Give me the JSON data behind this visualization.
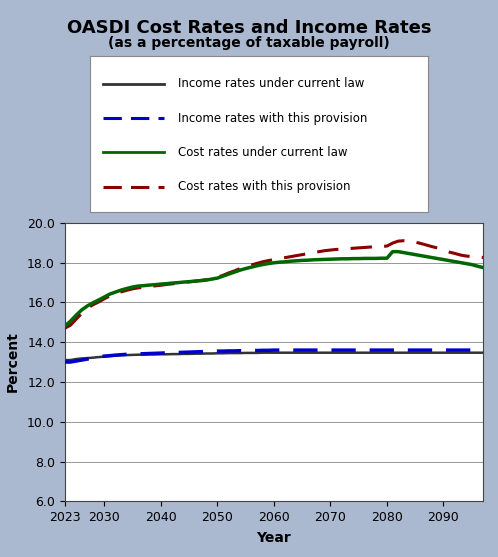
{
  "title": "OASDI Cost Rates and Income Rates",
  "subtitle": "(as a percentage of taxable payroll)",
  "xlabel": "Year",
  "ylabel": "Percent",
  "background_color": "#aab8d0",
  "plot_bg_color": "#ffffff",
  "xlim": [
    2023,
    2097
  ],
  "ylim": [
    6.0,
    20.0
  ],
  "yticks": [
    6.0,
    8.0,
    10.0,
    12.0,
    14.0,
    16.0,
    18.0,
    20.0
  ],
  "xticks": [
    2023,
    2030,
    2040,
    2050,
    2060,
    2070,
    2080,
    2090
  ],
  "years": [
    2023,
    2024,
    2025,
    2026,
    2027,
    2028,
    2029,
    2030,
    2031,
    2032,
    2033,
    2034,
    2035,
    2036,
    2037,
    2038,
    2039,
    2040,
    2041,
    2042,
    2043,
    2044,
    2045,
    2046,
    2047,
    2048,
    2049,
    2050,
    2051,
    2052,
    2053,
    2054,
    2055,
    2056,
    2057,
    2058,
    2059,
    2060,
    2061,
    2062,
    2063,
    2064,
    2065,
    2066,
    2067,
    2068,
    2069,
    2070,
    2071,
    2072,
    2073,
    2074,
    2075,
    2076,
    2077,
    2078,
    2079,
    2080,
    2081,
    2082,
    2083,
    2084,
    2085,
    2086,
    2087,
    2088,
    2089,
    2090,
    2091,
    2092,
    2093,
    2094,
    2095,
    2096,
    2097
  ],
  "income_current_law": [
    13.1,
    13.1,
    13.15,
    13.18,
    13.2,
    13.22,
    13.25,
    13.27,
    13.3,
    13.32,
    13.34,
    13.35,
    13.36,
    13.37,
    13.37,
    13.38,
    13.38,
    13.39,
    13.39,
    13.4,
    13.4,
    13.41,
    13.41,
    13.42,
    13.42,
    13.43,
    13.43,
    13.44,
    13.44,
    13.45,
    13.45,
    13.45,
    13.46,
    13.46,
    13.46,
    13.47,
    13.47,
    13.47,
    13.47,
    13.47,
    13.47,
    13.47,
    13.47,
    13.47,
    13.47,
    13.47,
    13.47,
    13.47,
    13.47,
    13.47,
    13.47,
    13.47,
    13.47,
    13.47,
    13.47,
    13.47,
    13.47,
    13.47,
    13.47,
    13.47,
    13.47,
    13.47,
    13.47,
    13.47,
    13.47,
    13.47,
    13.47,
    13.47,
    13.47,
    13.47,
    13.47,
    13.47,
    13.47,
    13.47,
    13.47
  ],
  "income_provision": [
    13.0,
    13.0,
    13.05,
    13.1,
    13.15,
    13.2,
    13.25,
    13.3,
    13.32,
    13.35,
    13.37,
    13.39,
    13.4,
    13.41,
    13.42,
    13.43,
    13.44,
    13.45,
    13.46,
    13.47,
    13.48,
    13.49,
    13.5,
    13.51,
    13.52,
    13.53,
    13.54,
    13.55,
    13.55,
    13.56,
    13.56,
    13.57,
    13.57,
    13.58,
    13.58,
    13.59,
    13.59,
    13.6,
    13.6,
    13.6,
    13.6,
    13.6,
    13.6,
    13.6,
    13.6,
    13.6,
    13.6,
    13.6,
    13.6,
    13.6,
    13.6,
    13.6,
    13.6,
    13.6,
    13.6,
    13.6,
    13.6,
    13.6,
    13.6,
    13.6,
    13.6,
    13.6,
    13.6,
    13.6,
    13.6,
    13.6,
    13.6,
    13.6,
    13.6,
    13.6,
    13.6,
    13.6,
    13.6,
    13.6,
    13.6
  ],
  "cost_current_law": [
    14.8,
    15.05,
    15.35,
    15.62,
    15.82,
    15.98,
    16.12,
    16.27,
    16.42,
    16.52,
    16.62,
    16.7,
    16.77,
    16.82,
    16.84,
    16.87,
    16.89,
    16.92,
    16.94,
    16.97,
    16.99,
    17.02,
    17.04,
    17.07,
    17.09,
    17.12,
    17.17,
    17.22,
    17.32,
    17.42,
    17.52,
    17.62,
    17.7,
    17.77,
    17.84,
    17.9,
    17.95,
    17.99,
    18.02,
    18.04,
    18.07,
    18.09,
    18.11,
    18.12,
    18.14,
    18.15,
    18.16,
    18.17,
    18.18,
    18.19,
    18.19,
    18.2,
    18.2,
    18.21,
    18.21,
    18.21,
    18.22,
    18.22,
    18.55,
    18.55,
    18.5,
    18.45,
    18.4,
    18.35,
    18.3,
    18.25,
    18.2,
    18.15,
    18.1,
    18.05,
    18.0,
    17.95,
    17.9,
    17.82,
    17.75
  ],
  "cost_provision": [
    14.7,
    14.85,
    15.15,
    15.45,
    15.7,
    15.88,
    16.02,
    16.18,
    16.33,
    16.43,
    16.53,
    16.61,
    16.68,
    16.73,
    16.76,
    16.8,
    16.83,
    16.86,
    16.9,
    16.93,
    16.96,
    17.0,
    17.03,
    17.06,
    17.1,
    17.14,
    17.2,
    17.26,
    17.36,
    17.48,
    17.58,
    17.7,
    17.8,
    17.88,
    17.96,
    18.04,
    18.1,
    18.15,
    18.2,
    18.25,
    18.3,
    18.35,
    18.4,
    18.45,
    18.5,
    18.55,
    18.6,
    18.63,
    18.66,
    18.68,
    18.7,
    18.72,
    18.74,
    18.76,
    18.78,
    18.8,
    18.81,
    18.83,
    18.98,
    19.08,
    19.1,
    19.08,
    19.03,
    18.96,
    18.88,
    18.8,
    18.73,
    18.63,
    18.53,
    18.46,
    18.38,
    18.33,
    18.3,
    18.28,
    18.26
  ],
  "income_current_law_color": "#333333",
  "income_provision_color": "#0000cc",
  "cost_current_law_color": "#006600",
  "cost_provision_color": "#8b0000",
  "legend_labels": [
    "Income rates under current law",
    "Income rates with this provision",
    "Cost rates under current law",
    "Cost rates with this provision"
  ],
  "title_fontsize": 13,
  "subtitle_fontsize": 10,
  "axis_label_fontsize": 10,
  "tick_fontsize": 9,
  "legend_fontsize": 8.5
}
